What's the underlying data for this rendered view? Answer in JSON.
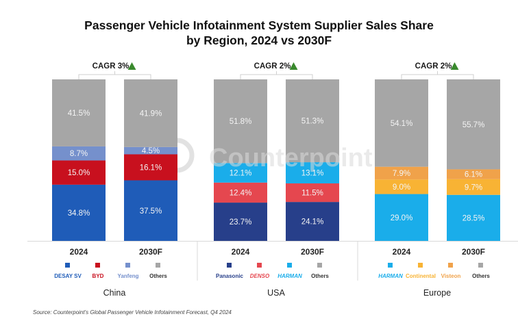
{
  "chart_data": {
    "type": "bar",
    "subtype": "stacked-100",
    "title": "Passenger Vehicle Infotainment System Supplier Sales Share by Region, 2024 vs 2030F",
    "title_lines": [
      "Passenger Vehicle Infotainment System Supplier Sales Share",
      "by Region, 2024 vs 2030F"
    ],
    "xlabel": "",
    "ylabel": "",
    "ylim": [
      0,
      100
    ],
    "grid": false,
    "value_format": "percent",
    "categories": [
      "2024",
      "2030F"
    ],
    "groups": [
      {
        "region": "China",
        "cagr_label": "CAGR 3%",
        "cagr_trend": "up",
        "series": [
          {
            "name": "Desay SV",
            "legend_text": "DESAY SV",
            "color": "#1F5CB8",
            "values": [
              34.8,
              37.5
            ],
            "labels": [
              "34.8%",
              "37.5%"
            ]
          },
          {
            "name": "BYD",
            "legend_text": "BYD",
            "color": "#C8101E",
            "values": [
              15.0,
              16.1
            ],
            "labels": [
              "15.0%",
              "16.1%"
            ]
          },
          {
            "name": "Yanfeng",
            "legend_text": "Yanfeng",
            "color": "#7590CC",
            "values": [
              8.7,
              4.5
            ],
            "labels": [
              "8.7%",
              "4.5%"
            ]
          },
          {
            "name": "Others",
            "legend_text": "Others",
            "color": "#A6A6A6",
            "values": [
              41.5,
              41.9
            ],
            "labels": [
              "41.5%",
              "41.9%"
            ]
          }
        ]
      },
      {
        "region": "USA",
        "cagr_label": "CAGR 2%",
        "cagr_trend": "up",
        "series": [
          {
            "name": "Panasonic",
            "legend_text": "Panasonic",
            "color": "#273F8A",
            "values": [
              23.7,
              24.1
            ],
            "labels": [
              "23.7%",
              "24.1%"
            ]
          },
          {
            "name": "Denso",
            "legend_text": "DENSO",
            "color": "#E5474F",
            "values": [
              12.4,
              11.5
            ],
            "labels": [
              "12.4%",
              "11.5%"
            ]
          },
          {
            "name": "Harman",
            "legend_text": "HARMAN",
            "color": "#1AADEA",
            "values": [
              12.1,
              13.1
            ],
            "labels": [
              "12.1%",
              "13.1%"
            ]
          },
          {
            "name": "Others",
            "legend_text": "Others",
            "color": "#A6A6A6",
            "values": [
              51.8,
              51.3
            ],
            "labels": [
              "51.8%",
              "51.3%"
            ]
          }
        ]
      },
      {
        "region": "Europe",
        "cagr_label": "CAGR 2%",
        "cagr_trend": "up",
        "series": [
          {
            "name": "Harman",
            "legend_text": "HARMAN",
            "color": "#1AADEA",
            "values": [
              29.0,
              28.5
            ],
            "labels": [
              "29.0%",
              "28.5%"
            ]
          },
          {
            "name": "Continental",
            "legend_text": "Continental",
            "color": "#F8B334",
            "values": [
              9.0,
              9.7
            ],
            "labels": [
              "9.0%",
              "9.7%"
            ]
          },
          {
            "name": "Visteon",
            "legend_text": "Visteon",
            "color": "#F0A24A",
            "values": [
              7.9,
              6.1
            ],
            "labels": [
              "7.9%",
              "6.1%"
            ]
          },
          {
            "name": "Others",
            "legend_text": "Others",
            "color": "#A6A6A6",
            "values": [
              54.1,
              55.7
            ],
            "labels": [
              "54.1%",
              "55.7%"
            ]
          }
        ]
      }
    ],
    "legend_position": "bottom",
    "annotations": [
      "CAGR 3% (China)",
      "CAGR 2% (USA)",
      "CAGR 2% (Europe)"
    ]
  },
  "watermark": "Counterpoint",
  "source": "Source: Counterpoint's Global Passenger Vehicle Infotainment Forecast, Q4 2024",
  "colors": {
    "cagr_arrow": "#3A8A2E",
    "others": "#A6A6A6"
  }
}
